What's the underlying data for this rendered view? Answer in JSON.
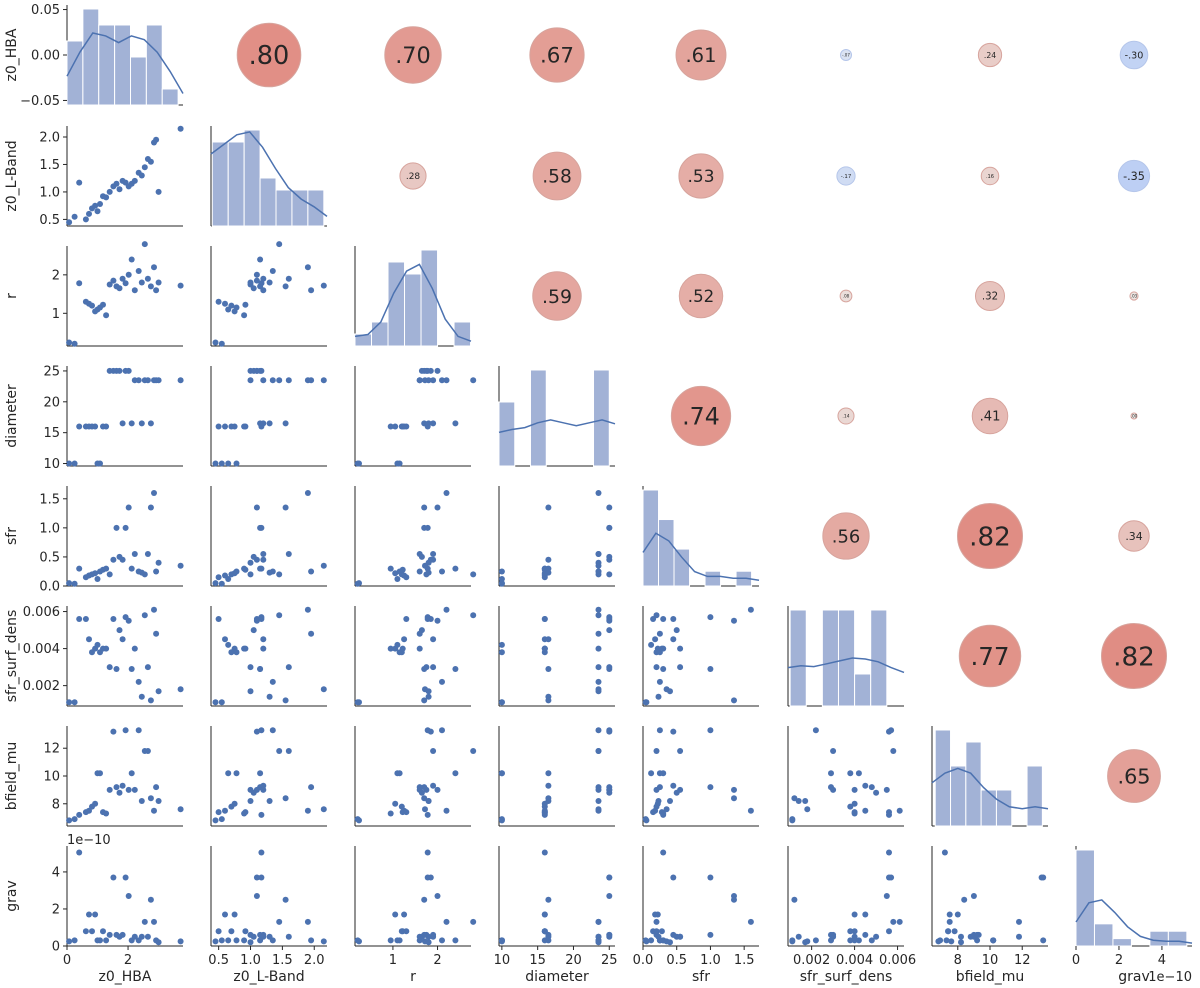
{
  "chart_data": {
    "type": "pairplot",
    "title": "",
    "variables": [
      "z0_HBA",
      "z0_L-Band",
      "r",
      "diameter",
      "sfr",
      "sfr_surf_dens",
      "bfield_mu",
      "grav"
    ],
    "colors": {
      "points": "#4c72b0",
      "bars": "#a2b2d6",
      "kde": "#4c72b0",
      "positive": "#c44e52",
      "negative": "#6d94f0"
    },
    "axes": [
      {
        "name": "z0_HBA",
        "range": [
          0,
          3.8
        ],
        "ticks": [
          0,
          2
        ],
        "tick_labels": [
          "0",
          "2"
        ]
      },
      {
        "name": "z0_L-Band",
        "range": [
          0.38,
          2.2
        ],
        "ticks": [
          0.5,
          1.0,
          1.5,
          2.0
        ],
        "tick_labels": [
          "0.5",
          "1.0",
          "1.5",
          "2.0"
        ]
      },
      {
        "name": "r",
        "range": [
          0.15,
          2.75
        ],
        "ticks": [
          1,
          2
        ],
        "tick_labels": [
          "1",
          "2"
        ]
      },
      {
        "name": "diameter",
        "range": [
          9.6,
          25.8
        ],
        "ticks": [
          10,
          15,
          20,
          25
        ],
        "tick_labels": [
          "10",
          "15",
          "20",
          "25"
        ]
      },
      {
        "name": "sfr",
        "range": [
          0,
          1.72
        ],
        "ticks": [
          0.0,
          0.5,
          1.0,
          1.5
        ],
        "tick_labels": [
          "0.0",
          "0.5",
          "1.0",
          "1.5"
        ]
      },
      {
        "name": "sfr_surf_dens",
        "range": [
          0.0009,
          0.0063
        ],
        "ticks": [
          0.002,
          0.004,
          0.006
        ],
        "tick_labels": [
          "0.002",
          "0.004",
          "0.006"
        ]
      },
      {
        "name": "bfield_mu",
        "range": [
          6.4,
          13.6
        ],
        "ticks": [
          8,
          10,
          12
        ],
        "tick_labels": [
          "8",
          "10",
          "12"
        ]
      },
      {
        "name": "grav",
        "range": [
          0,
          5.4
        ],
        "ticks": [
          0,
          2,
          4
        ],
        "tick_labels": [
          "0",
          "2",
          "4"
        ]
      }
    ],
    "first_row_range": [
      -0.055,
      0.055
    ],
    "first_row_ticks": [
      -0.05,
      0.0,
      0.05
    ],
    "first_row_tick_labels": [
      "−0.05",
      "0.00",
      "0.05"
    ],
    "grav_offset_label": "1e−10",
    "samples": [
      [
        0.07,
        0.45,
        0.24,
        10.0,
        0.05,
        0.0011,
        6.8,
        0.25
      ],
      [
        0.25,
        0.55,
        0.21,
        10.0,
        0.04,
        0.0011,
        6.9,
        0.3
      ],
      [
        0.4,
        1.17,
        1.78,
        16.0,
        0.3,
        0.0056,
        7.2,
        5.05
      ],
      [
        0.62,
        0.5,
        1.3,
        16.0,
        0.15,
        0.0056,
        7.4,
        0.8
      ],
      [
        0.72,
        0.6,
        1.25,
        16.0,
        0.18,
        0.0045,
        7.5,
        1.7
      ],
      [
        0.82,
        0.7,
        1.2,
        16.0,
        0.2,
        0.0038,
        7.8,
        0.8
      ],
      [
        0.92,
        0.75,
        1.05,
        16.0,
        0.22,
        0.004,
        8.0,
        1.7
      ],
      [
        1.0,
        0.65,
        1.1,
        10.0,
        0.12,
        0.0042,
        10.2,
        0.3
      ],
      [
        1.08,
        0.78,
        1.15,
        10.0,
        0.25,
        0.0038,
        10.2,
        0.3
      ],
      [
        1.18,
        0.92,
        1.22,
        16.0,
        0.28,
        0.004,
        7.4,
        0.8
      ],
      [
        1.28,
        0.9,
        0.95,
        16.0,
        0.3,
        0.004,
        7.3,
        0.3
      ],
      [
        1.4,
        1.0,
        1.75,
        25.0,
        0.2,
        0.003,
        9.0,
        0.6
      ],
      [
        1.52,
        1.1,
        1.85,
        25.0,
        0.45,
        0.0056,
        13.2,
        3.7
      ],
      [
        1.62,
        1.15,
        1.7,
        25.0,
        1.0,
        0.0029,
        9.2,
        0.6
      ],
      [
        1.72,
        1.05,
        1.65,
        25.0,
        0.5,
        0.005,
        8.8,
        0.5
      ],
      [
        1.82,
        1.2,
        1.9,
        16.5,
        0.45,
        0.0045,
        9.3,
        0.6
      ],
      [
        1.92,
        1.17,
        1.78,
        25.0,
        1.0,
        0.0057,
        13.3,
        3.7
      ],
      [
        2.02,
        1.1,
        2.0,
        25.0,
        1.35,
        0.0055,
        9.0,
        2.7
      ],
      [
        2.12,
        1.15,
        2.4,
        16.5,
        0.3,
        0.0029,
        10.2,
        0.3
      ],
      [
        2.22,
        1.2,
        1.6,
        23.5,
        0.55,
        0.004,
        9.0,
        0.5
      ],
      [
        2.35,
        1.35,
        2.1,
        23.5,
        0.25,
        0.0022,
        13.3,
        0.3
      ],
      [
        2.45,
        1.3,
        1.8,
        16.5,
        0.23,
        0.0014,
        8.2,
        0.5
      ],
      [
        2.55,
        1.45,
        2.8,
        23.5,
        0.2,
        0.0058,
        11.8,
        1.3
      ],
      [
        2.65,
        1.6,
        1.9,
        23.5,
        0.55,
        0.003,
        11.8,
        0.5
      ],
      [
        2.75,
        1.55,
        1.7,
        16.5,
        1.35,
        0.0012,
        8.4,
        2.5
      ],
      [
        2.85,
        1.9,
        2.2,
        23.5,
        1.6,
        0.0061,
        7.5,
        1.3
      ],
      [
        2.92,
        1.95,
        1.6,
        23.5,
        0.25,
        0.0048,
        9.2,
        0.3
      ],
      [
        3.0,
        1.0,
        1.8,
        23.5,
        0.4,
        0.0017,
        8.2,
        0.2
      ],
      [
        3.72,
        2.15,
        1.72,
        23.5,
        0.35,
        0.0018,
        7.6,
        0.25
      ]
    ],
    "histograms": [
      {
        "bins": [
          0.0,
          0.52,
          1.04,
          1.56,
          2.08,
          2.6,
          3.12,
          3.64
        ],
        "counts": [
          4,
          6,
          5,
          5,
          3,
          5,
          1
        ]
      },
      {
        "bins": [
          0.4,
          0.65,
          0.9,
          1.15,
          1.4,
          1.65,
          1.9,
          2.15
        ],
        "counts": [
          7,
          7,
          8,
          4,
          3,
          3,
          3
        ]
      },
      {
        "bins": [
          0.15,
          0.52,
          0.89,
          1.26,
          1.63,
          2.0,
          2.37,
          2.74
        ],
        "counts": [
          1,
          2,
          7,
          6,
          8,
          0,
          2
        ]
      },
      {
        "bins": [
          9.6,
          11.8,
          14.0,
          16.2,
          18.4,
          20.6,
          22.8,
          25.0
        ],
        "counts": [
          4,
          0,
          6,
          0,
          0,
          0,
          6
        ]
      },
      {
        "bins": [
          0.0,
          0.23,
          0.46,
          0.69,
          0.92,
          1.15,
          1.38,
          1.61
        ],
        "counts": [
          13,
          9,
          5,
          0,
          2,
          0,
          2
        ]
      },
      {
        "bins": [
          0.001,
          0.00175,
          0.0025,
          0.00325,
          0.004,
          0.00475,
          0.0055,
          0.0062
        ],
        "counts": [
          6,
          0,
          6,
          6,
          2,
          6,
          0
        ]
      },
      {
        "bins": [
          6.6,
          7.55,
          8.5,
          9.45,
          10.4,
          11.35,
          12.3,
          13.25
        ],
        "counts": [
          8,
          5,
          7,
          3,
          3,
          0,
          5
        ]
      },
      {
        "bins": [
          0.0,
          0.86,
          1.72,
          2.58,
          3.44,
          4.3,
          5.16
        ],
        "counts": [
          13,
          3,
          1,
          0,
          2,
          2
        ]
      }
    ],
    "kde": [
      [
        0.3,
        0.55,
        0.75,
        0.72,
        0.65,
        0.72,
        0.68,
        0.55,
        0.35,
        0.12
      ],
      [
        0.75,
        0.85,
        0.95,
        0.98,
        0.82,
        0.6,
        0.4,
        0.28,
        0.2,
        0.1
      ],
      [
        0.1,
        0.12,
        0.25,
        0.55,
        0.78,
        0.85,
        0.6,
        0.28,
        0.1,
        0.05
      ],
      [
        0.35,
        0.38,
        0.4,
        0.45,
        0.48,
        0.45,
        0.42,
        0.45,
        0.48,
        0.44
      ],
      [
        0.35,
        0.55,
        0.47,
        0.3,
        0.15,
        0.1,
        0.1,
        0.08,
        0.08,
        0.06
      ],
      [
        0.4,
        0.42,
        0.41,
        0.44,
        0.47,
        0.5,
        0.49,
        0.46,
        0.4,
        0.35
      ],
      [
        0.45,
        0.55,
        0.6,
        0.55,
        0.4,
        0.28,
        0.2,
        0.18,
        0.2,
        0.18
      ],
      [
        0.25,
        0.45,
        0.48,
        0.35,
        0.2,
        0.1,
        0.06,
        0.05,
        0.05,
        0.03
      ]
    ],
    "correlations": [
      {
        "row": 0,
        "col": 1,
        "label": ".80",
        "value": 0.8
      },
      {
        "row": 0,
        "col": 2,
        "label": ".70",
        "value": 0.7
      },
      {
        "row": 0,
        "col": 3,
        "label": ".67",
        "value": 0.67
      },
      {
        "row": 0,
        "col": 4,
        "label": ".61",
        "value": 0.61
      },
      {
        "row": 0,
        "col": 5,
        "label": "-.07",
        "value": -0.07
      },
      {
        "row": 0,
        "col": 6,
        "label": ".24",
        "value": 0.24
      },
      {
        "row": 0,
        "col": 7,
        "label": "-.30",
        "value": -0.3
      },
      {
        "row": 1,
        "col": 2,
        "label": ".28",
        "value": 0.28
      },
      {
        "row": 1,
        "col": 3,
        "label": ".58",
        "value": 0.58
      },
      {
        "row": 1,
        "col": 4,
        "label": ".53",
        "value": 0.53
      },
      {
        "row": 1,
        "col": 5,
        "label": "-.17",
        "value": -0.17
      },
      {
        "row": 1,
        "col": 6,
        "label": ".16",
        "value": 0.16
      },
      {
        "row": 1,
        "col": 7,
        "label": "-.35",
        "value": -0.35
      },
      {
        "row": 2,
        "col": 3,
        "label": ".59",
        "value": 0.59
      },
      {
        "row": 2,
        "col": 4,
        "label": ".52",
        "value": 0.52
      },
      {
        "row": 2,
        "col": 5,
        "label": ".08",
        "value": 0.08
      },
      {
        "row": 2,
        "col": 6,
        "label": ".32",
        "value": 0.32
      },
      {
        "row": 2,
        "col": 7,
        "label": ".03",
        "value": 0.03
      },
      {
        "row": 3,
        "col": 4,
        "label": ".74",
        "value": 0.74
      },
      {
        "row": 3,
        "col": 5,
        "label": ".14",
        "value": 0.14
      },
      {
        "row": 3,
        "col": 6,
        "label": ".41",
        "value": 0.41
      },
      {
        "row": 3,
        "col": 7,
        "label": ".00",
        "value": 0.0
      },
      {
        "row": 4,
        "col": 5,
        "label": ".56",
        "value": 0.56
      },
      {
        "row": 4,
        "col": 6,
        "label": ".82",
        "value": 0.82
      },
      {
        "row": 4,
        "col": 7,
        "label": ".34",
        "value": 0.34
      },
      {
        "row": 5,
        "col": 6,
        "label": ".77",
        "value": 0.77
      },
      {
        "row": 5,
        "col": 7,
        "label": ".82",
        "value": 0.82
      },
      {
        "row": 6,
        "col": 7,
        "label": ".65",
        "value": 0.65
      }
    ]
  }
}
